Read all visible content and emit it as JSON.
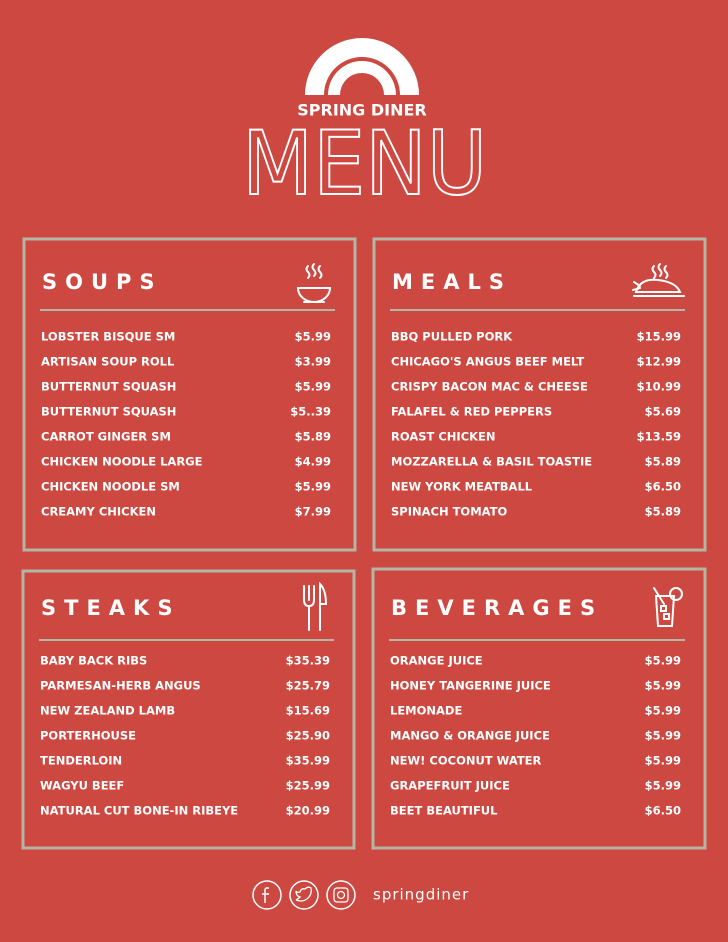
{
  "header": {
    "brand": "SPRING DINER",
    "title": "MENU"
  },
  "sections": [
    {
      "title": "SOUPS",
      "items": [
        {
          "name": "LOBSTER BISQUE SM",
          "price": "$5.99"
        },
        {
          "name": "ARTISAN SOUP ROLL",
          "price": "$3.99"
        },
        {
          "name": "BUTTERNUT SQUASH",
          "price": "$5.99"
        },
        {
          "name": "BUTTERNUT SQUASH",
          "price": "$5..39"
        },
        {
          "name": "CARROT GINGER SM",
          "price": "$5.89"
        },
        {
          "name": "CHICKEN NOODLE LARGE",
          "price": "$4.99"
        },
        {
          "name": "CHICKEN NOODLE SM",
          "price": "$5.99"
        },
        {
          "name": "CREAMY CHICKEN",
          "price": "$7.99"
        }
      ]
    },
    {
      "title": "MEALS",
      "items": [
        {
          "name": "BBQ PULLED PORK",
          "price": "$15.99"
        },
        {
          "name": "CHICAGO'S ANGUS BEEF MELT",
          "price": "$12.99"
        },
        {
          "name": "CRISPY BACON MAC & CHEESE",
          "price": "$10.99"
        },
        {
          "name": "FALAFEL & RED PEPPERS",
          "price": "$5.69"
        },
        {
          "name": "ROAST CHICKEN",
          "price": "$13.59"
        },
        {
          "name": "MOZZARELLA & BASIL TOASTIE",
          "price": "$5.89"
        },
        {
          "name": "NEW YORK MEATBALL",
          "price": "$6.50"
        },
        {
          "name": "SPINACH TOMATO",
          "price": "$5.89"
        }
      ]
    },
    {
      "title": "STEAKS",
      "items": [
        {
          "name": "BABY BACK RIBS",
          "price": "$35.39"
        },
        {
          "name": "PARMESAN-HERB ANGUS",
          "price": "$25.79"
        },
        {
          "name": "NEW ZEALAND LAMB",
          "price": "$15.69"
        },
        {
          "name": "PORTERHOUSE",
          "price": "$25.90"
        },
        {
          "name": "TENDERLOIN",
          "price": "$35.99"
        },
        {
          "name": "WAGYU BEEF",
          "price": "$25.99"
        },
        {
          "name": "NATURAL CUT BONE-IN RIBEYE",
          "price": "$20.99"
        }
      ]
    },
    {
      "title": "BEVERAGES",
      "items": [
        {
          "name": "ORANGE JUICE",
          "price": "$5.99"
        },
        {
          "name": "HONEY TANGERINE JUICE",
          "price": "$5.99"
        },
        {
          "name": "LEMONADE",
          "price": "$5.99"
        },
        {
          "name": "MANGO & ORANGE JUICE",
          "price": "$5.99"
        },
        {
          "name": "NEW! COCONUT WATER",
          "price": "$5.99"
        },
        {
          "name": "GRAPEFRUIT JUICE",
          "price": "$5.99"
        },
        {
          "name": "BEET BEAUTIFUL",
          "price": "$6.50"
        }
      ]
    }
  ],
  "footer": {
    "handle": "springdiner"
  }
}
